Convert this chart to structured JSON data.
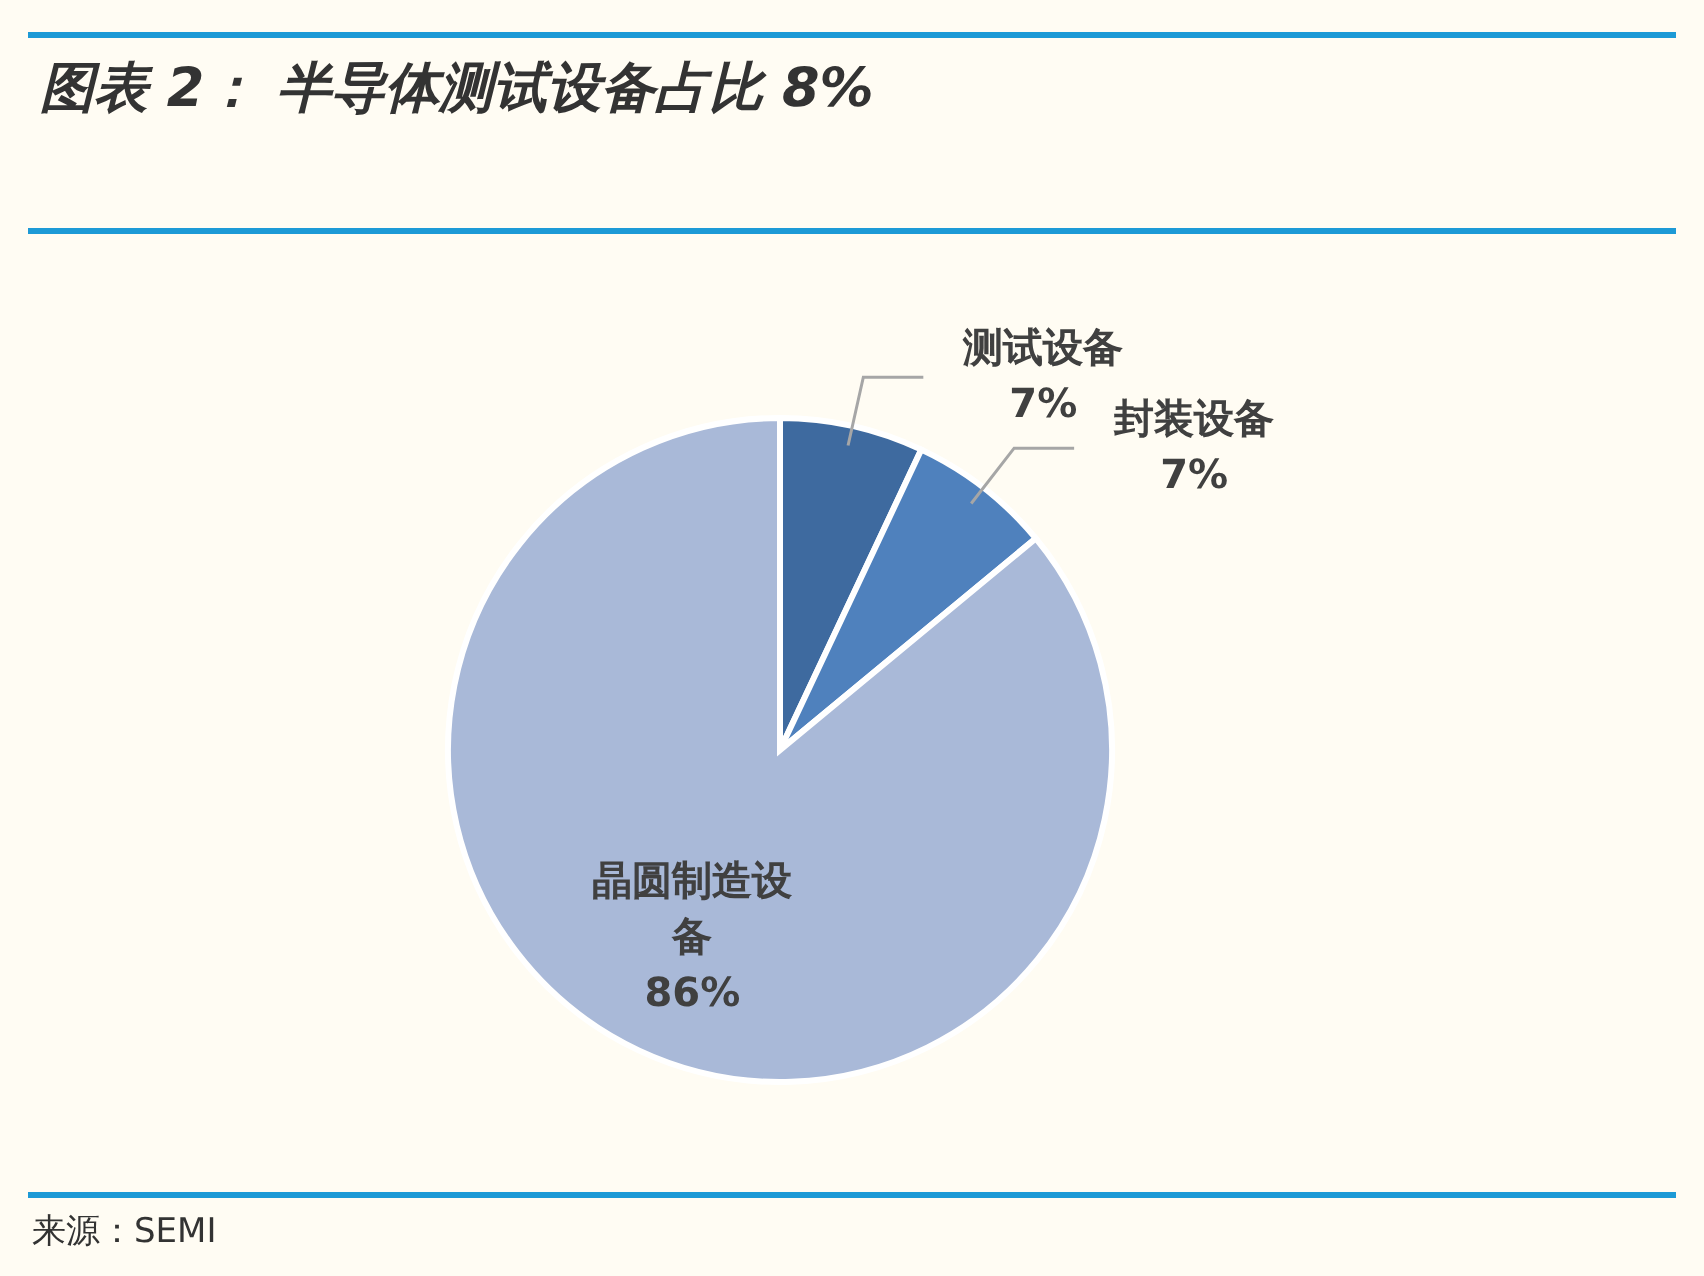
{
  "chart_data": {
    "type": "pie",
    "title": "图表 2： 半导体测试设备占比 8%",
    "categories": [
      "测试设备",
      "封装设备",
      "晶圆制造设备"
    ],
    "values": [
      7,
      7,
      86
    ],
    "colors": [
      "#3e6a9f",
      "#4f81bd",
      "#a9b9d8"
    ],
    "value_labels": [
      "7%",
      "7%",
      "86%"
    ],
    "annotations": [
      "来源：SEMI"
    ]
  }
}
